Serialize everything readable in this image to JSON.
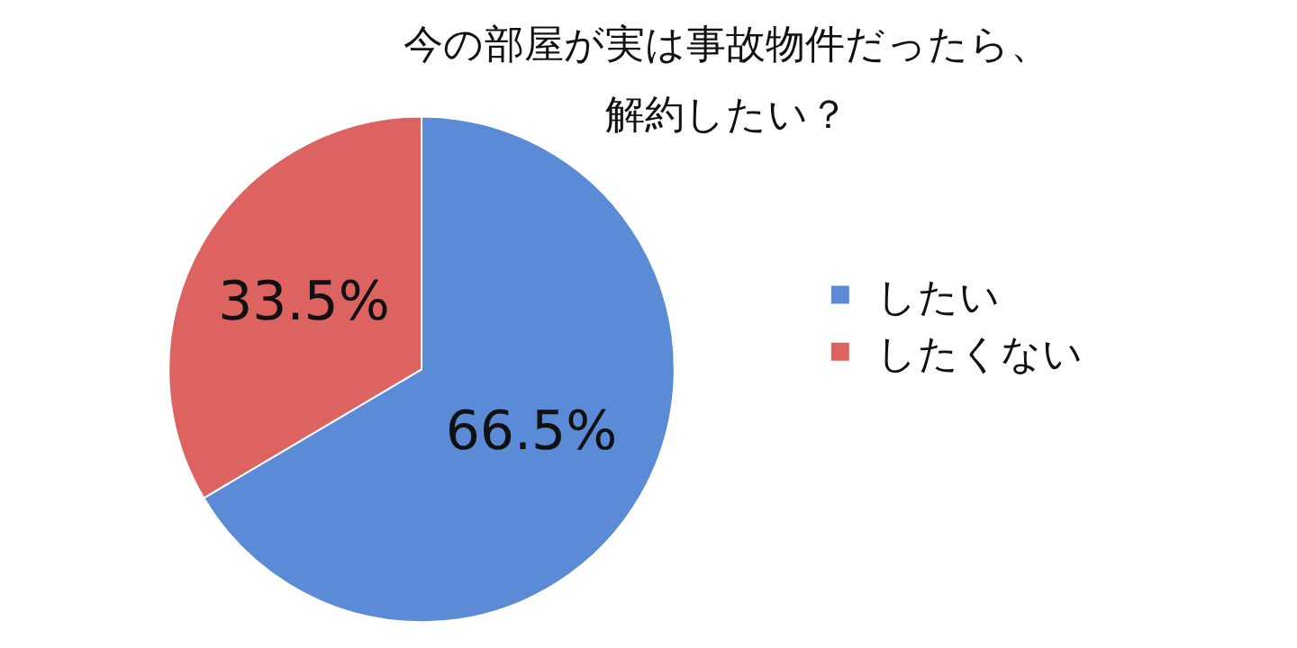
{
  "chart_data": {
    "type": "pie",
    "title": [
      "今の部屋が実は事故物件だったら、",
      "解約したい？"
    ],
    "categories": [
      "したい",
      "したくない"
    ],
    "values": [
      66.5,
      33.5
    ],
    "colors": [
      "#5b8ad6",
      "#dc6360"
    ],
    "value_labels": [
      "66.5%",
      "33.5%"
    ],
    "legend": "right"
  }
}
